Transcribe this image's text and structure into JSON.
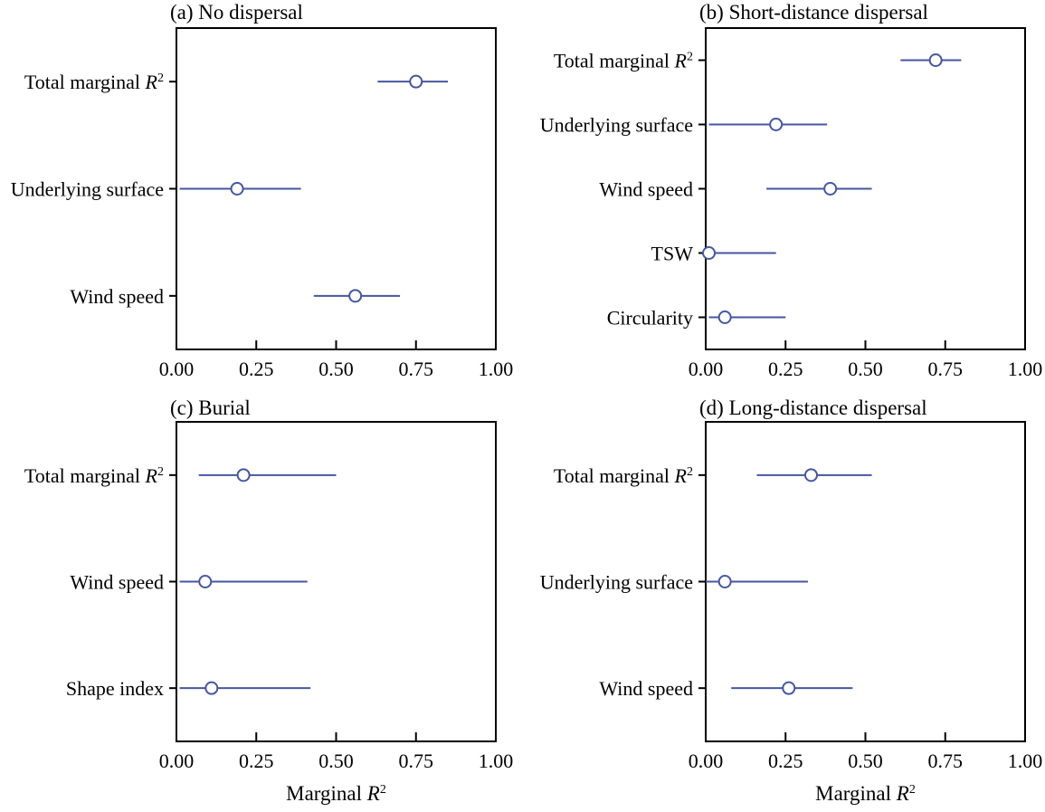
{
  "figure": {
    "background": "#ffffff",
    "accent_color": "#4656a0",
    "frame_color": "#000000",
    "text_color": "#000000",
    "marker": "open-circle",
    "shared_xlabel": "Marginal R²"
  },
  "chart_data": [
    {
      "type": "scatter",
      "panel_id": "a",
      "title": "(a) No dispersal",
      "orientation": "horizontal",
      "error_bars": true,
      "xlabel": "",
      "xlim": [
        0,
        1
      ],
      "x_ticks": [
        0.0,
        0.25,
        0.5,
        0.75,
        1.0
      ],
      "x_tick_labels": [
        "0.00",
        "0.25",
        "0.50",
        "0.75",
        "1.00"
      ],
      "categories": [
        "Total marginal R²",
        "Underlying surface",
        "Wind speed"
      ],
      "values": [
        0.75,
        0.19,
        0.56
      ],
      "ci_low": [
        0.63,
        0.01,
        0.43
      ],
      "ci_high": [
        0.85,
        0.39,
        0.7
      ]
    },
    {
      "type": "scatter",
      "panel_id": "b",
      "title": "(b) Short-distance dispersal",
      "orientation": "horizontal",
      "error_bars": true,
      "xlabel": "",
      "xlim": [
        0,
        1
      ],
      "x_ticks": [
        0.0,
        0.25,
        0.5,
        0.75,
        1.0
      ],
      "x_tick_labels": [
        "0.00",
        "0.25",
        "0.50",
        "0.75",
        "1.00"
      ],
      "categories": [
        "Total marginal R²",
        "Underlying surface",
        "Wind speed",
        "TSW",
        "Circularity"
      ],
      "values": [
        0.72,
        0.22,
        0.39,
        0.01,
        0.06
      ],
      "ci_low": [
        0.61,
        0.01,
        0.19,
        0.0,
        0.01
      ],
      "ci_high": [
        0.8,
        0.38,
        0.52,
        0.22,
        0.25
      ]
    },
    {
      "type": "scatter",
      "panel_id": "c",
      "title": "(c) Burial",
      "orientation": "horizontal",
      "error_bars": true,
      "xlabel": "Marginal R²",
      "xlim": [
        0,
        1
      ],
      "x_ticks": [
        0.0,
        0.25,
        0.5,
        0.75,
        1.0
      ],
      "x_tick_labels": [
        "0.00",
        "0.25",
        "0.50",
        "0.75",
        "1.00"
      ],
      "categories": [
        "Total marginal R²",
        "Wind speed",
        "Shape index"
      ],
      "values": [
        0.21,
        0.09,
        0.11
      ],
      "ci_low": [
        0.07,
        0.01,
        0.01
      ],
      "ci_high": [
        0.5,
        0.41,
        0.42
      ]
    },
    {
      "type": "scatter",
      "panel_id": "d",
      "title": "(d) Long-distance dispersal",
      "orientation": "horizontal",
      "error_bars": true,
      "xlabel": "Marginal R²",
      "xlim": [
        0,
        1
      ],
      "x_ticks": [
        0.0,
        0.25,
        0.5,
        0.75,
        1.0
      ],
      "x_tick_labels": [
        "0.00",
        "0.25",
        "0.50",
        "0.75",
        "1.00"
      ],
      "categories": [
        "Total marginal R²",
        "Underlying surface",
        "Wind speed"
      ],
      "values": [
        0.33,
        0.06,
        0.26
      ],
      "ci_low": [
        0.16,
        0.0,
        0.08
      ],
      "ci_high": [
        0.52,
        0.32,
        0.46
      ]
    }
  ]
}
